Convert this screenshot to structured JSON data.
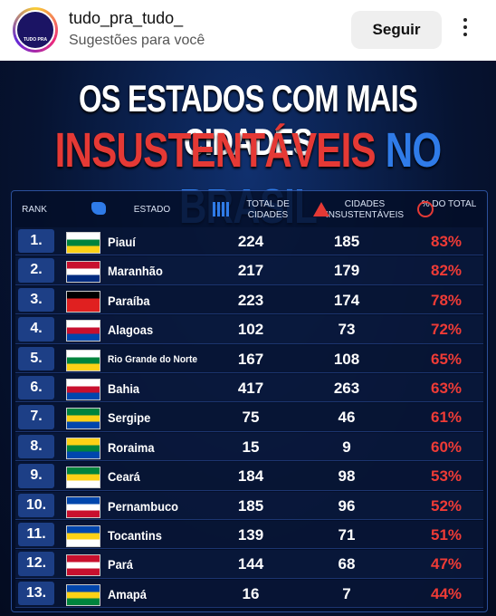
{
  "header": {
    "username": "tudo_pra_tudo_",
    "subtitle": "Sugestões para você",
    "follow_button": "Seguir",
    "avatar_text": "TUDO PRA TUDO"
  },
  "infographic": {
    "title_line1": "OS ESTADOS COM MAIS CIDADES",
    "title_line2_red": "INSUSTENTÁVEIS",
    "title_line2_blue": "NO BRASIL"
  },
  "table": {
    "columns": [
      "RANK",
      "ESTADO",
      "TOTAL DE CIDADES",
      "CIDADES INSUSTENTÁVEIS",
      "% DO TOTAL"
    ],
    "rows": [
      [
        "1.",
        "Piauí",
        "224",
        "185",
        "83%"
      ],
      [
        "2.",
        "Maranhão",
        "217",
        "179",
        "82%"
      ],
      [
        "3.",
        "Paraíba",
        "223",
        "174",
        "78%"
      ],
      [
        "4.",
        "Alagoas",
        "102",
        "73",
        "72%"
      ],
      [
        "5.",
        "Rio Grande do Norte",
        "167",
        "108",
        "65%"
      ],
      [
        "6.",
        "Bahia",
        "417",
        "263",
        "63%"
      ],
      [
        "7.",
        "Sergipe",
        "75",
        "46",
        "61%"
      ],
      [
        "8.",
        "Roraima",
        "15",
        "9",
        "60%"
      ],
      [
        "9.",
        "Ceará",
        "184",
        "98",
        "53%"
      ],
      [
        "10.",
        "Pernambuco",
        "185",
        "96",
        "52%"
      ],
      [
        "11.",
        "Tocantins",
        "139",
        "71",
        "51%"
      ],
      [
        "12.",
        "Pará",
        "144",
        "68",
        "47%"
      ],
      [
        "13.",
        "Amapá",
        "16",
        "7",
        "44%"
      ]
    ]
  }
}
